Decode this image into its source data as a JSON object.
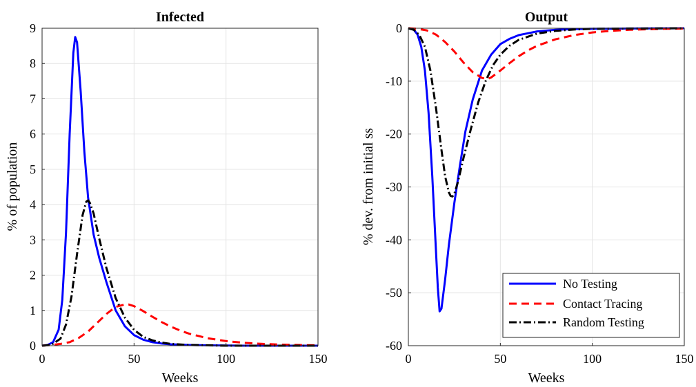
{
  "chart_data": [
    {
      "type": "line",
      "title": "Infected",
      "xlabel": "Weeks",
      "ylabel": "% of population",
      "xlim": [
        0,
        150
      ],
      "ylim": [
        0,
        9
      ],
      "xticks": [
        "0",
        "50",
        "100",
        "150"
      ],
      "yticks": [
        "0",
        "1",
        "2",
        "3",
        "4",
        "5",
        "6",
        "7",
        "8",
        "9"
      ],
      "grid": true,
      "series": [
        {
          "name": "No Testing",
          "color": "#0000ff",
          "style": "solid",
          "x": [
            0,
            3,
            6,
            9,
            11,
            13,
            15,
            17,
            18,
            19,
            21,
            23,
            25,
            28,
            31,
            35,
            40,
            45,
            50,
            55,
            60,
            65,
            70,
            80,
            90,
            100,
            110,
            120,
            130,
            140,
            150
          ],
          "y": [
            0,
            0.02,
            0.1,
            0.45,
            1.3,
            3.2,
            6.0,
            8.3,
            8.75,
            8.6,
            7.2,
            5.5,
            4.2,
            3.15,
            2.5,
            1.8,
            1.0,
            0.55,
            0.3,
            0.17,
            0.1,
            0.06,
            0.04,
            0.02,
            0.01,
            0.005,
            0,
            0,
            0,
            0,
            0
          ]
        },
        {
          "name": "Contact Tracing",
          "color": "#ff0000",
          "style": "dashed",
          "x": [
            0,
            5,
            10,
            15,
            20,
            25,
            30,
            35,
            40,
            45,
            47,
            50,
            55,
            60,
            65,
            70,
            75,
            80,
            90,
            100,
            110,
            120,
            130,
            140,
            150
          ],
          "y": [
            0,
            0.02,
            0.05,
            0.1,
            0.22,
            0.4,
            0.65,
            0.9,
            1.1,
            1.17,
            1.17,
            1.12,
            0.98,
            0.82,
            0.67,
            0.54,
            0.43,
            0.34,
            0.21,
            0.13,
            0.08,
            0.05,
            0.03,
            0.02,
            0.01
          ]
        },
        {
          "name": "Random Testing",
          "color": "#000000",
          "style": "dashdot",
          "x": [
            0,
            5,
            10,
            13,
            16,
            19,
            22,
            24,
            25,
            26,
            28,
            31,
            35,
            40,
            45,
            50,
            55,
            60,
            65,
            70,
            80,
            90,
            100,
            110,
            120,
            130,
            140,
            150
          ],
          "y": [
            0,
            0.02,
            0.2,
            0.6,
            1.4,
            2.6,
            3.7,
            4.08,
            4.12,
            4.05,
            3.75,
            3.05,
            2.2,
            1.35,
            0.8,
            0.45,
            0.25,
            0.15,
            0.09,
            0.05,
            0.02,
            0.01,
            0,
            0,
            0,
            0,
            0,
            0
          ]
        }
      ]
    },
    {
      "type": "line",
      "title": "Output",
      "xlabel": "Weeks",
      "ylabel": "% dev. from initial ss",
      "xlim": [
        0,
        150
      ],
      "ylim": [
        -60,
        0
      ],
      "xticks": [
        "0",
        "50",
        "100",
        "150"
      ],
      "yticks": [
        "0",
        "-10",
        "-20",
        "-30",
        "-40",
        "-50",
        "-60"
      ],
      "grid": true,
      "legend_position": "bottom-right",
      "series": [
        {
          "name": "No Testing",
          "color": "#0000ff",
          "style": "solid",
          "x": [
            0,
            3,
            5,
            7,
            9,
            11,
            13,
            15,
            16,
            17,
            18,
            20,
            22,
            25,
            28,
            31,
            35,
            40,
            45,
            50,
            55,
            60,
            70,
            80,
            90,
            100,
            120,
            150
          ],
          "y": [
            0,
            -0.3,
            -1.2,
            -3.5,
            -8,
            -16,
            -28,
            -42,
            -49,
            -53.5,
            -53,
            -47.5,
            -41,
            -33,
            -26,
            -19.5,
            -13.5,
            -8,
            -5,
            -3,
            -2,
            -1.3,
            -0.6,
            -0.3,
            -0.15,
            -0.1,
            -0.05,
            0
          ]
        },
        {
          "name": "Contact Tracing",
          "color": "#ff0000",
          "style": "dashed",
          "x": [
            0,
            5,
            10,
            15,
            20,
            25,
            30,
            35,
            40,
            43,
            45,
            50,
            55,
            60,
            65,
            70,
            80,
            90,
            100,
            110,
            120,
            130,
            140,
            150
          ],
          "y": [
            0,
            -0.1,
            -0.4,
            -1.2,
            -2.6,
            -4.4,
            -6.5,
            -8.3,
            -9.4,
            -9.6,
            -9.3,
            -8.0,
            -6.6,
            -5.3,
            -4.2,
            -3.3,
            -2.1,
            -1.3,
            -0.8,
            -0.5,
            -0.3,
            -0.2,
            -0.1,
            -0.05
          ]
        },
        {
          "name": "Random Testing",
          "color": "#000000",
          "style": "dashdot",
          "x": [
            0,
            3,
            6,
            9,
            12,
            15,
            18,
            20,
            22,
            23,
            24,
            25,
            27,
            30,
            34,
            38,
            42,
            46,
            50,
            55,
            60,
            70,
            80,
            90,
            100,
            120,
            150
          ],
          "y": [
            0,
            -0.3,
            -1.3,
            -3.5,
            -8,
            -15,
            -23,
            -28,
            -31,
            -31.7,
            -31.8,
            -31.3,
            -29,
            -24.5,
            -19,
            -14,
            -10,
            -7,
            -5,
            -3.3,
            -2.2,
            -1,
            -0.5,
            -0.25,
            -0.1,
            -0.05,
            0
          ]
        }
      ]
    }
  ]
}
